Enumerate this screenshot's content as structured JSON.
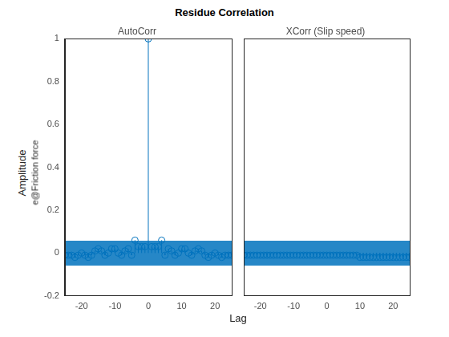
{
  "figure": {
    "title": "Residue Correlation",
    "xlabel": "Lag",
    "ylabel": [
      "Amplitude",
      "e@Friction force"
    ]
  },
  "chart_data": [
    {
      "type": "stem",
      "title": "AutoCorr",
      "color": "#0072bd",
      "marker": "circle",
      "grid": false,
      "x": [
        -25,
        -24,
        -23,
        -22,
        -21,
        -20,
        -19,
        -18,
        -17,
        -16,
        -15,
        -14,
        -13,
        -12,
        -11,
        -10,
        -9,
        -8,
        -7,
        -6,
        -5,
        -4,
        -3,
        -2,
        -1,
        0,
        1,
        2,
        3,
        4,
        5,
        6,
        7,
        8,
        9,
        10,
        11,
        12,
        13,
        14,
        15,
        16,
        17,
        18,
        19,
        20,
        21,
        22,
        23,
        24,
        25
      ],
      "values": [
        -0.01,
        -0.01,
        -0.01,
        -0.02,
        -0.01,
        0.0,
        -0.01,
        -0.02,
        -0.01,
        0.01,
        0.02,
        0.01,
        -0.01,
        0.0,
        0.02,
        0.02,
        0.0,
        -0.01,
        0.01,
        0.02,
        -0.01,
        0.06,
        0.03,
        0.03,
        0.03,
        1,
        0.03,
        0.03,
        0.03,
        0.06,
        -0.01,
        0.02,
        0.01,
        -0.01,
        0.0,
        0.02,
        0.02,
        0.0,
        -0.01,
        0.01,
        0.02,
        0.01,
        -0.01,
        -0.02,
        -0.01,
        0.0,
        -0.01,
        -0.02,
        -0.01,
        -0.01,
        -0.01
      ],
      "confidence_band": [
        -0.058,
        0.058
      ],
      "xlim": [
        -25,
        25
      ],
      "xticks": [
        -20,
        -10,
        0,
        10,
        20
      ],
      "ylim": [
        -0.2,
        1
      ],
      "yticks": [
        -0.2,
        0,
        0.2,
        0.4,
        0.6,
        0.8,
        1
      ]
    },
    {
      "type": "stem",
      "title": "XCorr (Slip speed)",
      "color": "#0072bd",
      "marker": "circle",
      "grid": false,
      "tick_labels": "x",
      "x": [
        -25,
        -24,
        -23,
        -22,
        -21,
        -20,
        -19,
        -18,
        -17,
        -16,
        -15,
        -14,
        -13,
        -12,
        -11,
        -10,
        -9,
        -8,
        -7,
        -6,
        -5,
        -4,
        -3,
        -2,
        -1,
        0,
        1,
        2,
        3,
        4,
        5,
        6,
        7,
        8,
        9,
        10,
        11,
        12,
        13,
        14,
        15,
        16,
        17,
        18,
        19,
        20,
        21,
        22,
        23,
        24,
        25
      ],
      "values": [
        -0.01,
        -0.01,
        -0.01,
        -0.01,
        -0.01,
        -0.01,
        -0.01,
        -0.01,
        -0.01,
        -0.01,
        -0.01,
        -0.01,
        -0.01,
        -0.01,
        -0.01,
        -0.01,
        -0.01,
        -0.01,
        -0.01,
        -0.01,
        -0.01,
        -0.01,
        -0.01,
        -0.01,
        -0.01,
        -0.01,
        -0.01,
        -0.01,
        -0.01,
        -0.01,
        -0.01,
        -0.01,
        -0.01,
        -0.01,
        -0.01,
        -0.02,
        -0.02,
        -0.02,
        -0.02,
        -0.02,
        -0.02,
        -0.02,
        -0.02,
        -0.02,
        -0.02,
        -0.02,
        -0.02,
        -0.02,
        -0.02,
        -0.02,
        -0.02
      ],
      "confidence_band": [
        -0.058,
        0.058
      ],
      "xlim": [
        -25,
        25
      ],
      "xticks": [
        -20,
        -10,
        0,
        10,
        20
      ],
      "ylim": [
        -0.2,
        1
      ],
      "yticks": [
        -0.2,
        0,
        0.2,
        0.4,
        0.6,
        0.8,
        1
      ]
    }
  ]
}
